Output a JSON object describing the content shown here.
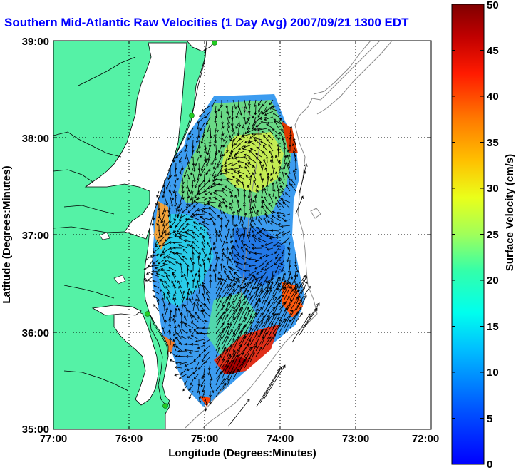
{
  "title": "Southern Mid-Atlantic Raw Velocities (1 Day Avg) 2007/09/21 1300 EDT",
  "map": {
    "xlabel": "Longitude (Degrees:Minutes)",
    "ylabel": "Latitude (Degrees:Minutes)",
    "xticks": [
      "77:00",
      "76:00",
      "75:00",
      "74:00",
      "73:00",
      "72:00"
    ],
    "yticks": [
      "39:00",
      "38:00",
      "37:00",
      "36:00",
      "35:00"
    ],
    "lon_range_west": [
      77,
      72
    ],
    "lat_range": [
      35,
      39
    ],
    "grid": "dotted",
    "land_color": "#55f2a6",
    "bathymetry_color": "#8a8a8a",
    "station_color": "#22cc22"
  },
  "colorbar": {
    "label": "Surface Velocity (cm/s)",
    "ticks": [
      "0",
      "5",
      "10",
      "15",
      "20",
      "25",
      "30",
      "35",
      "40",
      "45",
      "50"
    ],
    "min": 0,
    "max": 50
  },
  "colors": {
    "title": "#0000ff",
    "axis": "#000000"
  }
}
